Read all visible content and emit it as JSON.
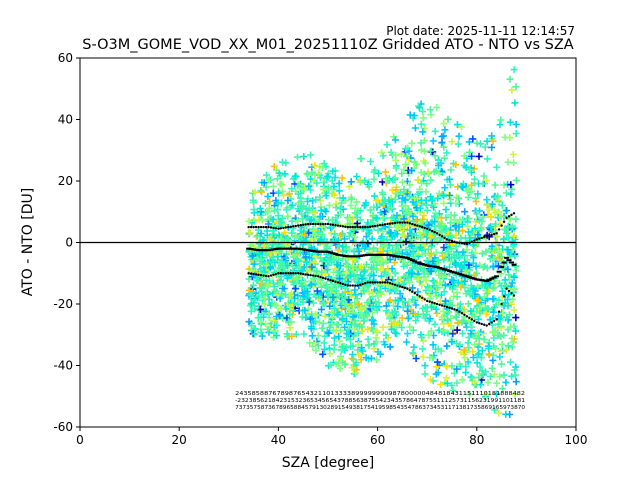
{
  "chart_data": {
    "type": "scatter",
    "title": "S-O3M_GOME_VOD_XX_M01_20251110Z Gridded ATO - NTO vs SZA",
    "plot_date": "Plot date: 2025-11-11 12:14:57",
    "xlabel": "SZA [degree]",
    "ylabel": "ATO - NTO [DU]",
    "xlim": [
      0,
      100
    ],
    "ylim": [
      -60,
      60
    ],
    "xticks": [
      0,
      20,
      40,
      60,
      80,
      100
    ],
    "yticks": [
      -60,
      -40,
      -20,
      0,
      20,
      40,
      60
    ],
    "reference_line_y": 0,
    "grid": false,
    "marker": "+",
    "colormap": "jet",
    "point_cloud": {
      "sza_range": [
        34,
        88
      ],
      "envelope": [
        {
          "x": 34,
          "low": -30,
          "high": 17
        },
        {
          "x": 40,
          "low": -31,
          "high": 26
        },
        {
          "x": 45,
          "low": -30,
          "high": 30
        },
        {
          "x": 50,
          "low": -40,
          "high": 25
        },
        {
          "x": 55,
          "low": -43,
          "high": 27
        },
        {
          "x": 60,
          "low": -38,
          "high": 28
        },
        {
          "x": 65,
          "low": -30,
          "high": 38
        },
        {
          "x": 70,
          "low": -44,
          "high": 49
        },
        {
          "x": 75,
          "low": -48,
          "high": 40
        },
        {
          "x": 80,
          "low": -50,
          "high": 34
        },
        {
          "x": 84,
          "low": -55,
          "high": 42
        },
        {
          "x": 88,
          "low": -60,
          "high": 59
        }
      ]
    },
    "series": [
      {
        "name": "",
        "style": "dash",
        "x": [
          34,
          36,
          38,
          40,
          42,
          44,
          46,
          48,
          50,
          52,
          54,
          56,
          58,
          60,
          62,
          64,
          66,
          68,
          70,
          72,
          74,
          76,
          78,
          80,
          82,
          84,
          86,
          88
        ],
        "y": [
          -2,
          -2.5,
          -2.5,
          -2,
          -2,
          -2,
          -2.5,
          -3,
          -3,
          -4,
          -4.5,
          -4.5,
          -4,
          -4,
          -4,
          -4.5,
          -5,
          -6.5,
          -7.5,
          -8,
          -9,
          -10,
          -11,
          -12,
          -12.5,
          -11,
          -5,
          -8
        ]
      },
      {
        "name": "",
        "style": "dotted",
        "x": [
          34,
          36,
          38,
          40,
          42,
          44,
          46,
          48,
          50,
          52,
          54,
          56,
          58,
          60,
          62,
          64,
          66,
          68,
          70,
          72,
          74,
          76,
          78,
          80,
          82,
          84,
          86,
          88
        ],
        "y": [
          5,
          5,
          5,
          4.5,
          5,
          5.5,
          6,
          6,
          6,
          5.5,
          5,
          5,
          5,
          5.5,
          6,
          6.5,
          6.5,
          5.5,
          4.5,
          3,
          1,
          0,
          -0.5,
          1,
          2,
          3,
          8,
          10
        ]
      },
      {
        "name": "",
        "style": "dotted",
        "x": [
          34,
          36,
          38,
          40,
          42,
          44,
          46,
          48,
          50,
          52,
          54,
          56,
          58,
          60,
          62,
          64,
          66,
          68,
          70,
          72,
          74,
          76,
          78,
          80,
          82,
          84,
          86,
          88
        ],
        "y": [
          -10,
          -10.5,
          -11,
          -10,
          -10,
          -10,
          -10.5,
          -11,
          -12,
          -13,
          -14,
          -14,
          -13,
          -13,
          -13,
          -14,
          -15,
          -17,
          -19,
          -20,
          -21,
          -22,
          -24,
          -26,
          -27,
          -25,
          -15,
          -18
        ]
      }
    ],
    "count_annotation_rows": [
      "2435858876789876543211013333899999990987800000484818431151110181888482",
      "-232385621842315323653456543788563875542343578647875511125731156231991101181",
      "7373575873678965884579130289154938175419598543547863734531171381735869165973870"
    ]
  }
}
